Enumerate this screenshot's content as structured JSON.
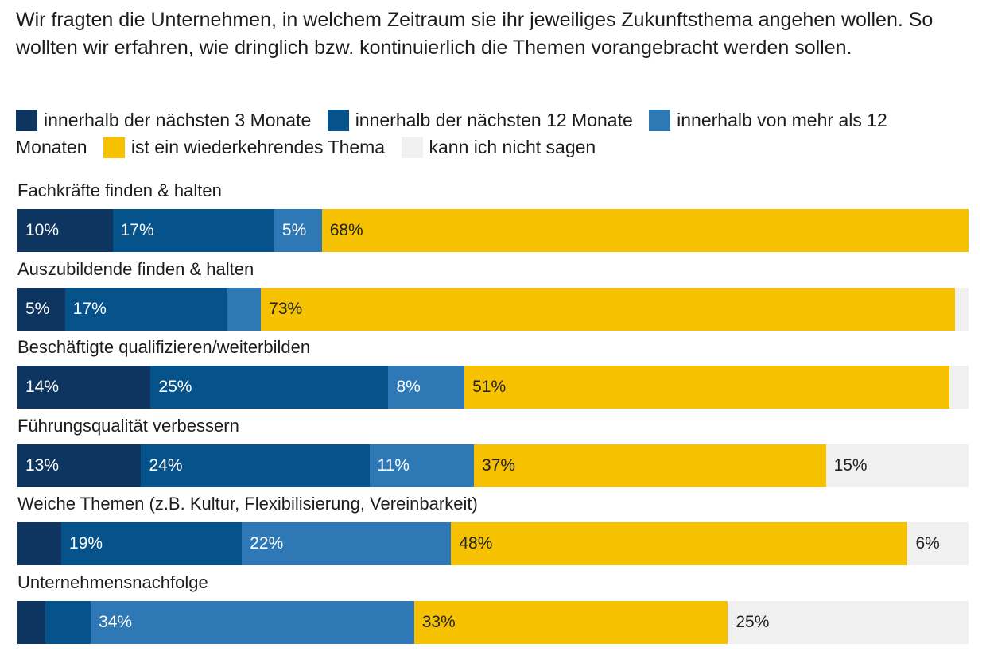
{
  "intro_text": "Wir fragten die Unternehmen, in welchem Zeitraum sie ihr jeweiliges Zukunftsthema angehen wollen. So wollten wir erfahren, wie dringlich bzw. kontinuierlich die Themen vorangebracht werden sollen.",
  "chart_data": {
    "type": "bar",
    "orientation": "horizontal",
    "stacked": true,
    "xlim": [
      0,
      100
    ],
    "unit": "%",
    "categories": [
      "Fachkräfte finden & halten",
      "Auszubildende finden & halten",
      "Beschäftigte qualifizieren/weiterbilden",
      "Führungsqualität verbessern",
      "Weiche Themen (z.B. Kultur, Flexibilisierung, Vereinbarkeit)",
      "Unternehmensnachfolge"
    ],
    "series": [
      {
        "name": "innerhalb der nächsten 3 Monate",
        "color": "#0d3560",
        "text_color": "#ffffff",
        "values": [
          10,
          5,
          14,
          13,
          4.6,
          2.9
        ],
        "labels": [
          "10%",
          "5%",
          "14%",
          "13%",
          "",
          ""
        ]
      },
      {
        "name": "innerhalb der nächsten 12 Monate",
        "color": "#06528a",
        "text_color": "#ffffff",
        "values": [
          17,
          17,
          25,
          24,
          19,
          4.8
        ],
        "labels": [
          "17%",
          "17%",
          "25%",
          "24%",
          "19%",
          ""
        ]
      },
      {
        "name": "innerhalb von mehr als 12 Monaten",
        "color": "#2e78b5",
        "text_color": "#ffffff",
        "values": [
          5,
          3.6,
          8,
          11,
          22,
          34
        ],
        "labels": [
          "5%",
          "",
          "8%",
          "11%",
          "22%",
          "34%"
        ]
      },
      {
        "name": "ist ein wiederkehrendes Thema",
        "color": "#f6c100",
        "text_color": "#222222",
        "values": [
          68,
          73,
          51,
          37,
          48,
          33
        ],
        "labels": [
          "68%",
          "73%",
          "51%",
          "37%",
          "48%",
          "33%"
        ]
      },
      {
        "name": "kann ich nicht sagen",
        "color": "#f0f0f0",
        "text_color": "#222222",
        "values": [
          0,
          0.7,
          1.2,
          15,
          6,
          25
        ],
        "labels": [
          "",
          "",
          "",
          "15%",
          "6%",
          "25%"
        ]
      }
    ]
  }
}
